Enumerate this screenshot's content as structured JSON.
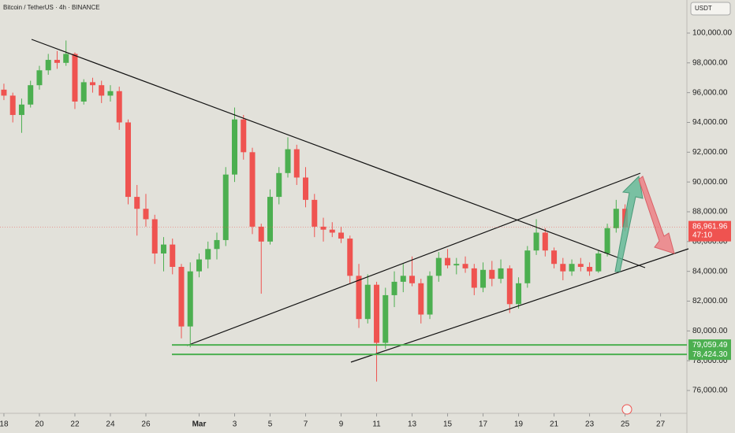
{
  "chart_data": {
    "type": "candlestick",
    "title": "Bitcoin / TetherUS · 4h · BINANCE",
    "currency": "USDT",
    "x": [
      18,
      18.5,
      19,
      19.5,
      20,
      20.5,
      21,
      21.5,
      22,
      22.5,
      23,
      23.5,
      24,
      24.5,
      25,
      25.5,
      26,
      26.5,
      27,
      27.5,
      28,
      28.5,
      29,
      29.5,
      30,
      30.5,
      31,
      31.5,
      32,
      32.5,
      33,
      33.5,
      34,
      34.5,
      35,
      35.5,
      36,
      36.5,
      37,
      37.5,
      38,
      38.5,
      39,
      39.5,
      40,
      40.5,
      41,
      41.5,
      42,
      42.5,
      43,
      43.5,
      44,
      44.5,
      45,
      45.5,
      46,
      46.5,
      47,
      47.5,
      48,
      48.5,
      49,
      49.5,
      50,
      50.5,
      51,
      51.5,
      52,
      52.5,
      53
    ],
    "open": [
      96200,
      95800,
      94500,
      95200,
      96500,
      97500,
      98200,
      98000,
      98600,
      95400,
      96700,
      96500,
      95800,
      96100,
      94000,
      89000,
      88200,
      87500,
      85200,
      85800,
      84300,
      80300,
      84000,
      84800,
      85500,
      86100,
      90500,
      94200,
      92000,
      87000,
      86000,
      89000,
      90600,
      92200,
      90300,
      88800,
      87000,
      86800,
      86600,
      86200,
      83700,
      80800,
      83100,
      79200,
      82400,
      83300,
      83700,
      83200,
      81100,
      83700,
      84900,
      84400,
      84500,
      84200,
      82900,
      84100,
      83500,
      84200,
      81800,
      83200,
      85400,
      86600,
      85400,
      84500,
      84000,
      84500,
      84300,
      84000,
      85200,
      86900,
      88200
    ],
    "high": [
      96600,
      96000,
      95600,
      96800,
      97800,
      98600,
      98800,
      99500,
      98700,
      96900,
      97000,
      96800,
      96500,
      96400,
      94200,
      89800,
      89200,
      87800,
      86300,
      86200,
      84500,
      84600,
      85200,
      86000,
      86600,
      91000,
      95000,
      94500,
      92300,
      87200,
      89500,
      91000,
      93000,
      92500,
      91000,
      89200,
      87600,
      87300,
      87000,
      86400,
      84500,
      83800,
      83300,
      82900,
      84000,
      84500,
      85000,
      83500,
      84000,
      85300,
      85500,
      84900,
      85000,
      84500,
      84600,
      84700,
      84800,
      84400,
      83600,
      85700,
      87500,
      86900,
      85600,
      84900,
      84800,
      84900,
      84600,
      85400,
      87200,
      88800,
      88500
    ],
    "low": [
      95500,
      94000,
      93300,
      95000,
      96200,
      97200,
      97600,
      97800,
      94900,
      95200,
      96000,
      95300,
      95400,
      93500,
      88500,
      86400,
      87000,
      84500,
      84000,
      83800,
      79500,
      78900,
      83600,
      84200,
      84800,
      85700,
      90000,
      91500,
      86500,
      82500,
      85800,
      88500,
      90300,
      89800,
      88300,
      86300,
      86000,
      86300,
      85900,
      83200,
      80200,
      80500,
      76600,
      78800,
      81600,
      82600,
      83000,
      80500,
      80800,
      83300,
      84200,
      83800,
      83900,
      82400,
      82600,
      83000,
      83200,
      81200,
      81500,
      82900,
      85100,
      85000,
      84200,
      83400,
      83700,
      84000,
      83700,
      83900,
      85000,
      86600,
      86700
    ],
    "close": [
      95800,
      94500,
      95200,
      96500,
      97500,
      98200,
      98000,
      98600,
      95400,
      96700,
      96500,
      95800,
      96100,
      94000,
      89000,
      88200,
      87500,
      85200,
      85800,
      84300,
      80300,
      84000,
      84800,
      85500,
      86100,
      90500,
      94200,
      92000,
      87000,
      86000,
      89000,
      90600,
      92200,
      90300,
      88800,
      87000,
      86800,
      86600,
      86200,
      83700,
      80800,
      83100,
      79200,
      82400,
      83300,
      83700,
      83200,
      81100,
      83700,
      84900,
      84400,
      84500,
      84200,
      82900,
      84100,
      83500,
      84200,
      81800,
      83200,
      85400,
      86600,
      85400,
      84500,
      84000,
      84500,
      84300,
      84000,
      85200,
      86900,
      88200,
      86961.96
    ],
    "up_color": "#4caf50",
    "down_color": "#ef5350",
    "xlim": [
      17.78,
      56.44
    ],
    "ylim": [
      74467,
      102220
    ],
    "yticks": [
      {
        "value": 76000,
        "label": "76,000.00"
      },
      {
        "value": 78000,
        "label": "78,000.00"
      },
      {
        "value": 80000,
        "label": "80,000.00"
      },
      {
        "value": 82000,
        "label": "82,000.00"
      },
      {
        "value": 84000,
        "label": "84,000.00"
      },
      {
        "value": 86000,
        "label": "86,000.00"
      },
      {
        "value": 88000,
        "label": "88,000.00"
      },
      {
        "value": 90000,
        "label": "90,000.00"
      },
      {
        "value": 92000,
        "label": "92,000.00"
      },
      {
        "value": 94000,
        "label": "94,000.00"
      },
      {
        "value": 96000,
        "label": "96,000.00"
      },
      {
        "value": 98000,
        "label": "98,000.00"
      },
      {
        "value": 100000,
        "label": "100,000.00"
      }
    ],
    "xticks": [
      18,
      20,
      22,
      24,
      26,
      {
        "value": 29,
        "label": "Mar"
      },
      {
        "value": 31,
        "label": "3"
      },
      {
        "value": 33,
        "label": "5"
      },
      {
        "value": 35,
        "label": "7"
      },
      {
        "value": 37,
        "label": "9"
      },
      {
        "value": 39,
        "label": "11"
      },
      {
        "value": 41,
        "label": "13"
      },
      {
        "value": 43,
        "label": "15"
      },
      {
        "value": 45,
        "label": "17"
      },
      {
        "value": 47,
        "label": "19"
      },
      {
        "value": 49,
        "label": "21"
      },
      {
        "value": 51,
        "label": "23"
      },
      {
        "value": 53,
        "label": "25"
      },
      {
        "value": 55,
        "label": "27"
      }
    ],
    "levels": [
      {
        "value": 79059.49,
        "label": "79,059.49",
        "color": "#4caf50"
      },
      {
        "value": 78424.3,
        "label": "78,424.30",
        "color": "#4caf50"
      }
    ],
    "last_price": {
      "value": 86961.96,
      "label": "86,961.96",
      "color": "#ef5350"
    },
    "countdown": "47:10"
  }
}
